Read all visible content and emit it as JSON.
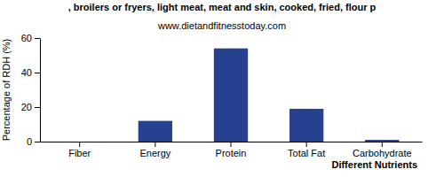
{
  "chart_data": {
    "type": "bar",
    "title": ", broilers or fryers, light meat, meat and skin, cooked, fried, flour p",
    "subtitle": "www.dietandfitnesstoday.com",
    "x_label": "Different Nutrients",
    "y_label": "Percentage of RDH (%)",
    "categories": [
      "Fiber",
      "Energy",
      "Protein",
      "Total Fat",
      "Carbohydrate"
    ],
    "values": [
      0,
      12,
      54,
      19,
      1
    ],
    "color": "#26418f",
    "ylim": [
      0,
      60
    ],
    "yticks": [
      0,
      20,
      40,
      60
    ],
    "grid": false
  }
}
